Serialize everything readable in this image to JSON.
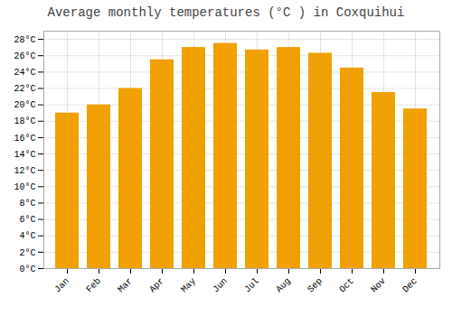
{
  "chart_data": {
    "type": "bar",
    "title": "Average monthly temperatures (°C ) in Coxquihui",
    "categories": [
      "Jan",
      "Feb",
      "Mar",
      "Apr",
      "May",
      "Jun",
      "Jul",
      "Aug",
      "Sep",
      "Oct",
      "Nov",
      "Dec"
    ],
    "values": [
      19.0,
      20.0,
      22.0,
      25.5,
      27.0,
      27.5,
      26.7,
      27.0,
      26.3,
      24.5,
      21.5,
      19.5
    ],
    "color": "#F0A000",
    "ylim": [
      0,
      29
    ],
    "yticks": [
      {
        "value": 0,
        "label": "0°C"
      },
      {
        "value": 2,
        "label": "2°C"
      },
      {
        "value": 4,
        "label": "4°C"
      },
      {
        "value": 6,
        "label": "6°C"
      },
      {
        "value": 8,
        "label": "8°C"
      },
      {
        "value": 10,
        "label": "10°C"
      },
      {
        "value": 12,
        "label": "12°C"
      },
      {
        "value": 14,
        "label": "14°C"
      },
      {
        "value": 16,
        "label": "16°C"
      },
      {
        "value": 18,
        "label": "18°C"
      },
      {
        "value": 20,
        "label": "20°C"
      },
      {
        "value": 22,
        "label": "22°C"
      },
      {
        "value": 24,
        "label": "24°C"
      },
      {
        "value": 26,
        "label": "26°C"
      },
      {
        "value": 28,
        "label": "28°C"
      }
    ],
    "grid": true
  }
}
